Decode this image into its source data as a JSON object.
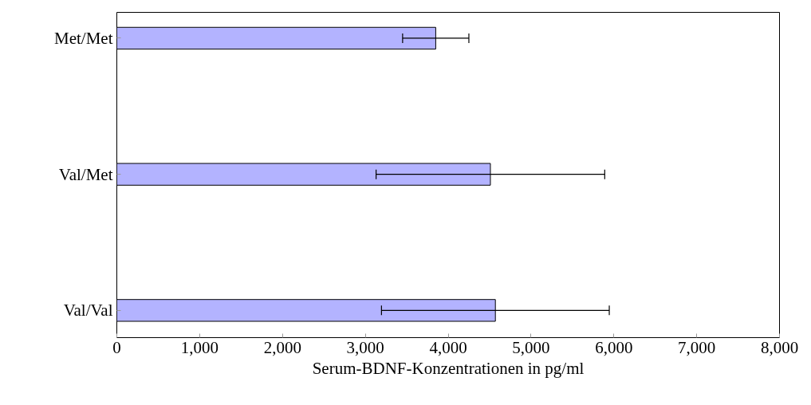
{
  "chart_data": {
    "type": "bar",
    "orientation": "horizontal",
    "xlabel": "Serum-BDNF-Konzentrationen in pg/ml",
    "categories": [
      "Met/Met",
      "Val/Met",
      "Val/Val"
    ],
    "values": [
      3850,
      4510,
      4570
    ],
    "errors": [
      400,
      1380,
      1375
    ],
    "color": "#b3b3ff",
    "xlim": [
      0,
      8000
    ],
    "xticks": [
      {
        "value": 0,
        "label": "0"
      },
      {
        "value": 1000,
        "label": "1,000"
      },
      {
        "value": 2000,
        "label": "2,000"
      },
      {
        "value": 3000,
        "label": "3,000"
      },
      {
        "value": 4000,
        "label": "4,000"
      },
      {
        "value": 5000,
        "label": "5,000"
      },
      {
        "value": 6000,
        "label": "6,000"
      },
      {
        "value": 7000,
        "label": "7,000"
      },
      {
        "value": 8000,
        "label": "8,000"
      }
    ],
    "grid": false
  }
}
